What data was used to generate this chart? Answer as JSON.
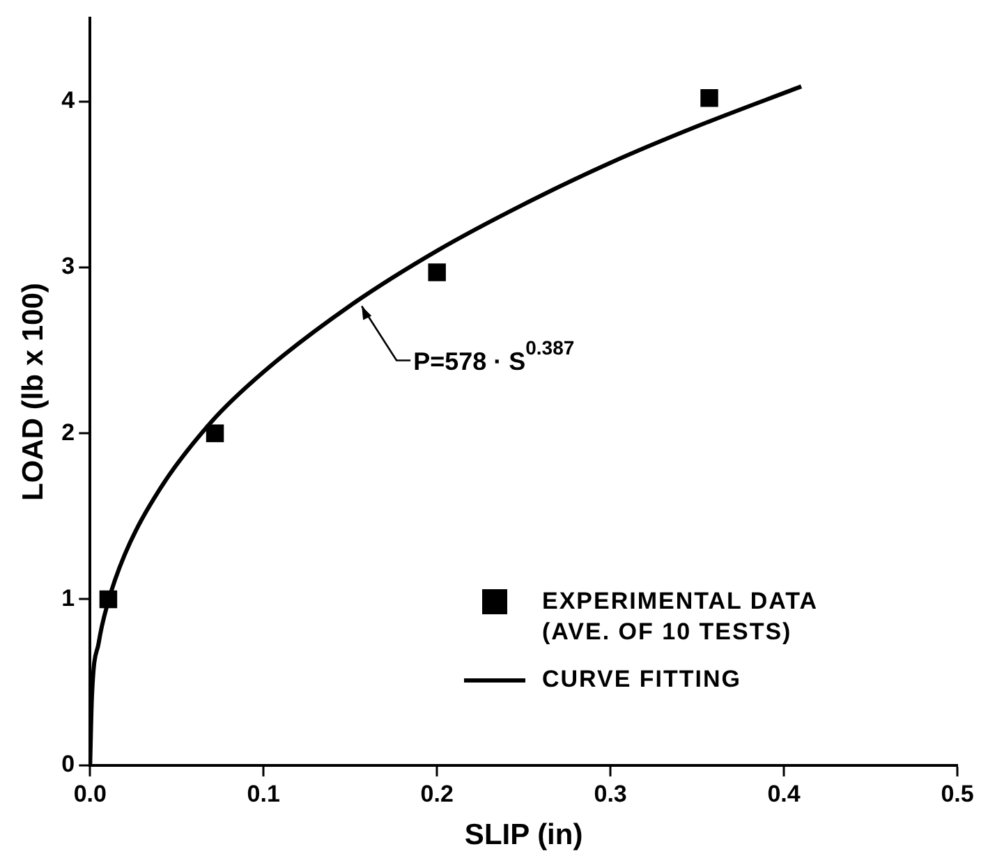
{
  "chart_data": {
    "type": "scatter",
    "xlabel": "SLIP (in)",
    "ylabel": "LOAD (lb x 100)",
    "xlim": [
      0,
      0.5
    ],
    "xticks": [
      {
        "value": 0,
        "label": "0.0"
      },
      0.1,
      0.2,
      0.3,
      0.4,
      0.5
    ],
    "ylim": [
      0,
      4.5
    ],
    "yticks": [
      0,
      1,
      2,
      3,
      4
    ],
    "series": [
      {
        "name": "EXPERIMENTAL DATA (AVE. OF 10 TESTS)",
        "color": "#000000",
        "marker": "square",
        "x": [
          0.0105,
          0.072,
          0.2,
          0.357
        ],
        "values": [
          1.0,
          2.0,
          2.97,
          4.02
        ]
      },
      {
        "name": "CURVE FITTING",
        "type": "line",
        "color": "#000000",
        "marker": "none",
        "line_style": "solid",
        "x": [
          0,
          0.001,
          0.005,
          0.01,
          0.02,
          0.04,
          0.07,
          0.1,
          0.15,
          0.2,
          0.25,
          0.3,
          0.35,
          0.41
        ],
        "values": [
          0,
          0.4,
          0.74,
          0.97,
          1.27,
          1.66,
          2.07,
          2.37,
          2.77,
          3.1,
          3.38,
          3.63,
          3.85,
          4.09
        ]
      }
    ],
    "annotations": [
      {
        "text": "P=578 · S$^{0.387}$",
        "x": 0.155,
        "y": 2.8
      }
    ],
    "grid": false,
    "legend": "bottom right"
  }
}
